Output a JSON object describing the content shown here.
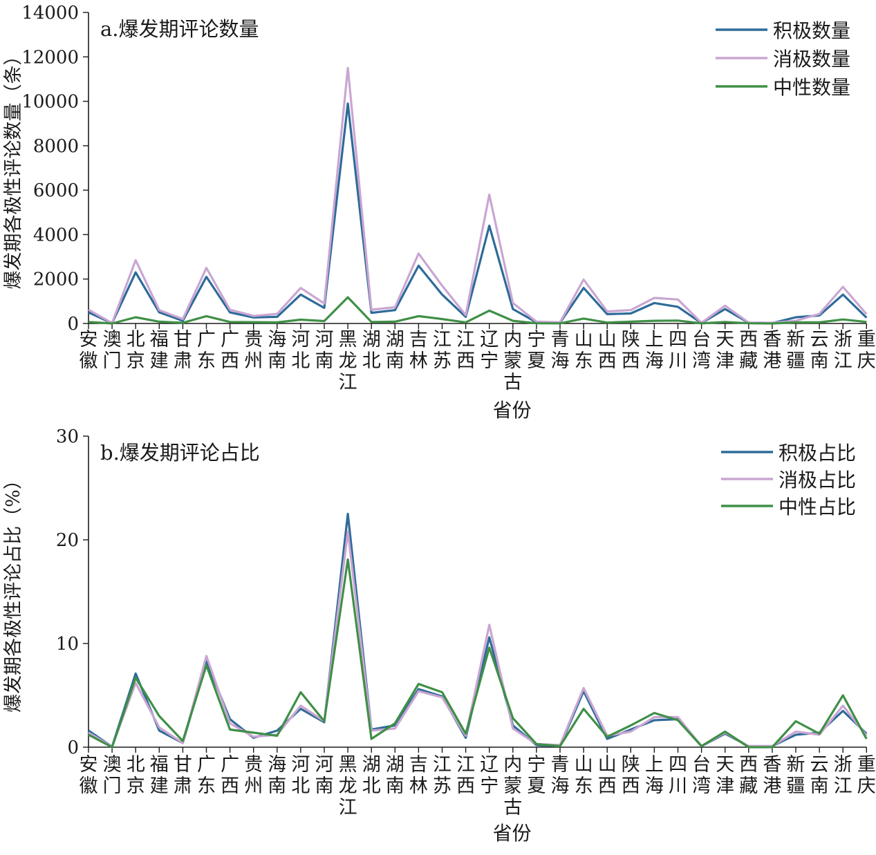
{
  "chart_data": [
    {
      "type": "line",
      "title": "a.爆发期评论数量",
      "xlabel": "省份",
      "ylabel": "爆发期各极性评论数量（条）",
      "ylim": [
        0,
        14000
      ],
      "yticks": [
        0,
        2000,
        4000,
        6000,
        8000,
        10000,
        12000,
        14000
      ],
      "legend": "top-right",
      "grid": false,
      "categories": [
        "安徽",
        "澳门",
        "北京",
        "福建",
        "甘肃",
        "广东",
        "广西",
        "贵州",
        "海南",
        "河北",
        "河南",
        "黑龙江",
        "湖北",
        "湖南",
        "吉林",
        "江苏",
        "江西",
        "辽宁",
        "内蒙古",
        "宁夏",
        "青海",
        "山东",
        "山西",
        "陕西",
        "上海",
        "四川",
        "台湾",
        "天津",
        "西藏",
        "香港",
        "新疆",
        "云南",
        "浙江",
        "重庆"
      ],
      "series": [
        {
          "name": "积极数量",
          "color": "#2e6b99",
          "values": [
            500,
            10,
            2300,
            500,
            120,
            2100,
            500,
            270,
            300,
            1300,
            700,
            9900,
            480,
            600,
            2600,
            1300,
            300,
            4400,
            650,
            50,
            30,
            1600,
            420,
            450,
            920,
            750,
            20,
            650,
            30,
            20,
            280,
            360,
            1300,
            260
          ]
        },
        {
          "name": "消极数量",
          "color": "#c9a6d2",
          "values": [
            620,
            20,
            2850,
            600,
            200,
            2500,
            620,
            340,
            430,
            1600,
            900,
            11500,
            620,
            730,
            3150,
            1700,
            380,
            5800,
            920,
            80,
            50,
            1980,
            540,
            600,
            1150,
            1080,
            30,
            800,
            40,
            30,
            120,
            430,
            1650,
            420
          ]
        },
        {
          "name": "中性数量",
          "color": "#3f8f46",
          "values": [
            70,
            0,
            280,
            80,
            30,
            330,
            70,
            60,
            50,
            170,
            110,
            1180,
            70,
            80,
            330,
            200,
            50,
            580,
            120,
            10,
            5,
            220,
            40,
            80,
            120,
            130,
            5,
            70,
            10,
            0,
            50,
            50,
            180,
            70
          ]
        }
      ]
    },
    {
      "type": "line",
      "title": "b.爆发期评论占比",
      "xlabel": "省份",
      "ylabel": "爆发期各极性评论占比（%）",
      "ylim": [
        0,
        30
      ],
      "yticks": [
        0,
        10,
        20,
        30
      ],
      "legend": "top-right",
      "grid": false,
      "categories": [
        "安徽",
        "澳门",
        "北京",
        "福建",
        "甘肃",
        "广东",
        "广西",
        "贵州",
        "海南",
        "河北",
        "河南",
        "黑龙江",
        "湖北",
        "湖南",
        "吉林",
        "江苏",
        "江西",
        "辽宁",
        "内蒙古",
        "宁夏",
        "青海",
        "山东",
        "山西",
        "陕西",
        "上海",
        "四川",
        "台湾",
        "天津",
        "西藏",
        "香港",
        "新疆",
        "云南",
        "浙江",
        "重庆"
      ],
      "series": [
        {
          "name": "积极占比",
          "color": "#2e6b99",
          "values": [
            1.6,
            0.05,
            7.1,
            1.6,
            0.4,
            8.3,
            2.7,
            0.9,
            1.6,
            3.7,
            2.4,
            22.5,
            1.7,
            2.1,
            5.6,
            4.9,
            0.9,
            10.6,
            2.1,
            0.2,
            0.1,
            5.4,
            0.8,
            1.7,
            2.6,
            2.7,
            0.1,
            1.3,
            0.1,
            0.1,
            1.2,
            1.4,
            3.5,
            1.3
          ]
        },
        {
          "name": "消极占比",
          "color": "#c9a6d2",
          "values": [
            1.4,
            0.05,
            6.2,
            1.9,
            0.4,
            8.8,
            2.3,
            1.0,
            1.2,
            4.0,
            2.5,
            20.8,
            1.6,
            1.8,
            5.4,
            4.8,
            1.1,
            11.8,
            1.8,
            0.3,
            0.2,
            5.7,
            1.1,
            1.5,
            2.9,
            2.9,
            0.1,
            1.4,
            0.1,
            0.1,
            1.5,
            1.2,
            4.0,
            1.1
          ]
        },
        {
          "name": "中性占比",
          "color": "#3f8f46",
          "values": [
            1.2,
            0.0,
            6.7,
            3.0,
            0.6,
            7.9,
            1.7,
            1.4,
            1.1,
            5.3,
            2.5,
            18.1,
            0.8,
            2.3,
            6.1,
            5.3,
            1.3,
            9.6,
            2.8,
            0.3,
            0.1,
            3.7,
            1.0,
            2.1,
            3.3,
            2.6,
            0.1,
            1.5,
            0.0,
            0.0,
            2.5,
            1.3,
            5.0,
            0.8
          ]
        }
      ]
    }
  ]
}
